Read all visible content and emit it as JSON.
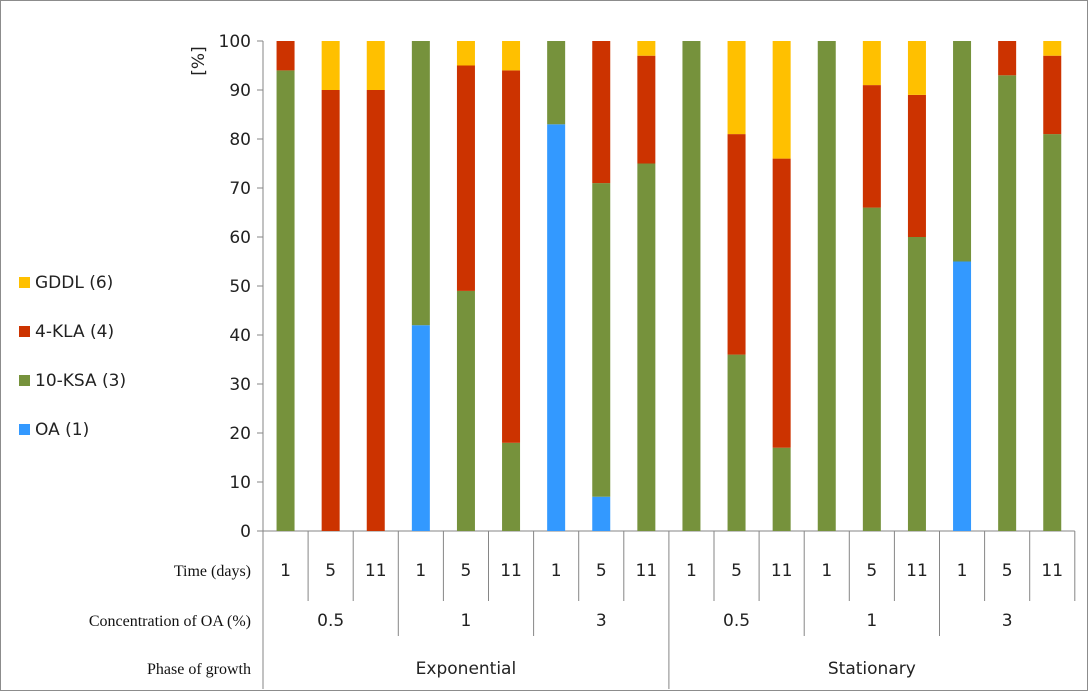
{
  "chart_data": {
    "type": "bar",
    "stacked": true,
    "ylabel": "[%]",
    "ylim": [
      0,
      100
    ],
    "yticks": [
      0,
      10,
      20,
      30,
      40,
      50,
      60,
      70,
      80,
      90,
      100
    ],
    "grid": false,
    "legend_position": "left",
    "categories": [
      "1",
      "5",
      "11",
      "1",
      "5",
      "11",
      "1",
      "5",
      "11",
      "1",
      "5",
      "11",
      "1",
      "5",
      "11",
      "1",
      "5",
      "11"
    ],
    "series": [
      {
        "name": "OA (1)",
        "color": "#3399ff",
        "values": [
          0,
          0,
          0,
          42,
          0,
          0,
          83,
          7,
          0,
          0,
          0,
          0,
          0,
          0,
          0,
          55,
          0,
          0
        ]
      },
      {
        "name": "10-KSA (3)",
        "color": "#76923c",
        "values": [
          94,
          0,
          0,
          58,
          49,
          18,
          17,
          64,
          75,
          100,
          36,
          17,
          100,
          66,
          60,
          45,
          93,
          81
        ]
      },
      {
        "name": "4-KLA (4)",
        "color": "#cc3300",
        "values": [
          6,
          90,
          90,
          0,
          46,
          76,
          0,
          29,
          22,
          0,
          45,
          59,
          0,
          25,
          29,
          0,
          7,
          16
        ]
      },
      {
        "name": "GDDL (6)",
        "color": "#ffc000",
        "values": [
          0,
          10,
          10,
          0,
          5,
          6,
          0,
          0,
          3,
          0,
          19,
          24,
          0,
          9,
          11,
          0,
          0,
          3
        ]
      }
    ],
    "legend_order": [
      "GDDL (6)",
      "4-KLA (4)",
      "10-KSA (3)",
      "OA (1)"
    ],
    "table": {
      "rows": [
        {
          "label": "Time (days)",
          "groups": [
            {
              "text": "1",
              "span": 1
            },
            {
              "text": "5",
              "span": 1
            },
            {
              "text": "11",
              "span": 1
            },
            {
              "text": "1",
              "span": 1
            },
            {
              "text": "5",
              "span": 1
            },
            {
              "text": "11",
              "span": 1
            },
            {
              "text": "1",
              "span": 1
            },
            {
              "text": "5",
              "span": 1
            },
            {
              "text": "11",
              "span": 1
            },
            {
              "text": "1",
              "span": 1
            },
            {
              "text": "5",
              "span": 1
            },
            {
              "text": "11",
              "span": 1
            },
            {
              "text": "1",
              "span": 1
            },
            {
              "text": "5",
              "span": 1
            },
            {
              "text": "11",
              "span": 1
            },
            {
              "text": "1",
              "span": 1
            },
            {
              "text": "5",
              "span": 1
            },
            {
              "text": "11",
              "span": 1
            }
          ]
        },
        {
          "label": "Concentration of OA (%)",
          "groups": [
            {
              "text": "0.5",
              "span": 3
            },
            {
              "text": "1",
              "span": 3
            },
            {
              "text": "3",
              "span": 3
            },
            {
              "text": "0.5",
              "span": 3
            },
            {
              "text": "1",
              "span": 3
            },
            {
              "text": "3",
              "span": 3
            }
          ]
        },
        {
          "label": "Phase of growth",
          "groups": [
            {
              "text": "Exponential",
              "span": 9
            },
            {
              "text": "Stationary",
              "span": 9
            }
          ]
        }
      ]
    }
  }
}
